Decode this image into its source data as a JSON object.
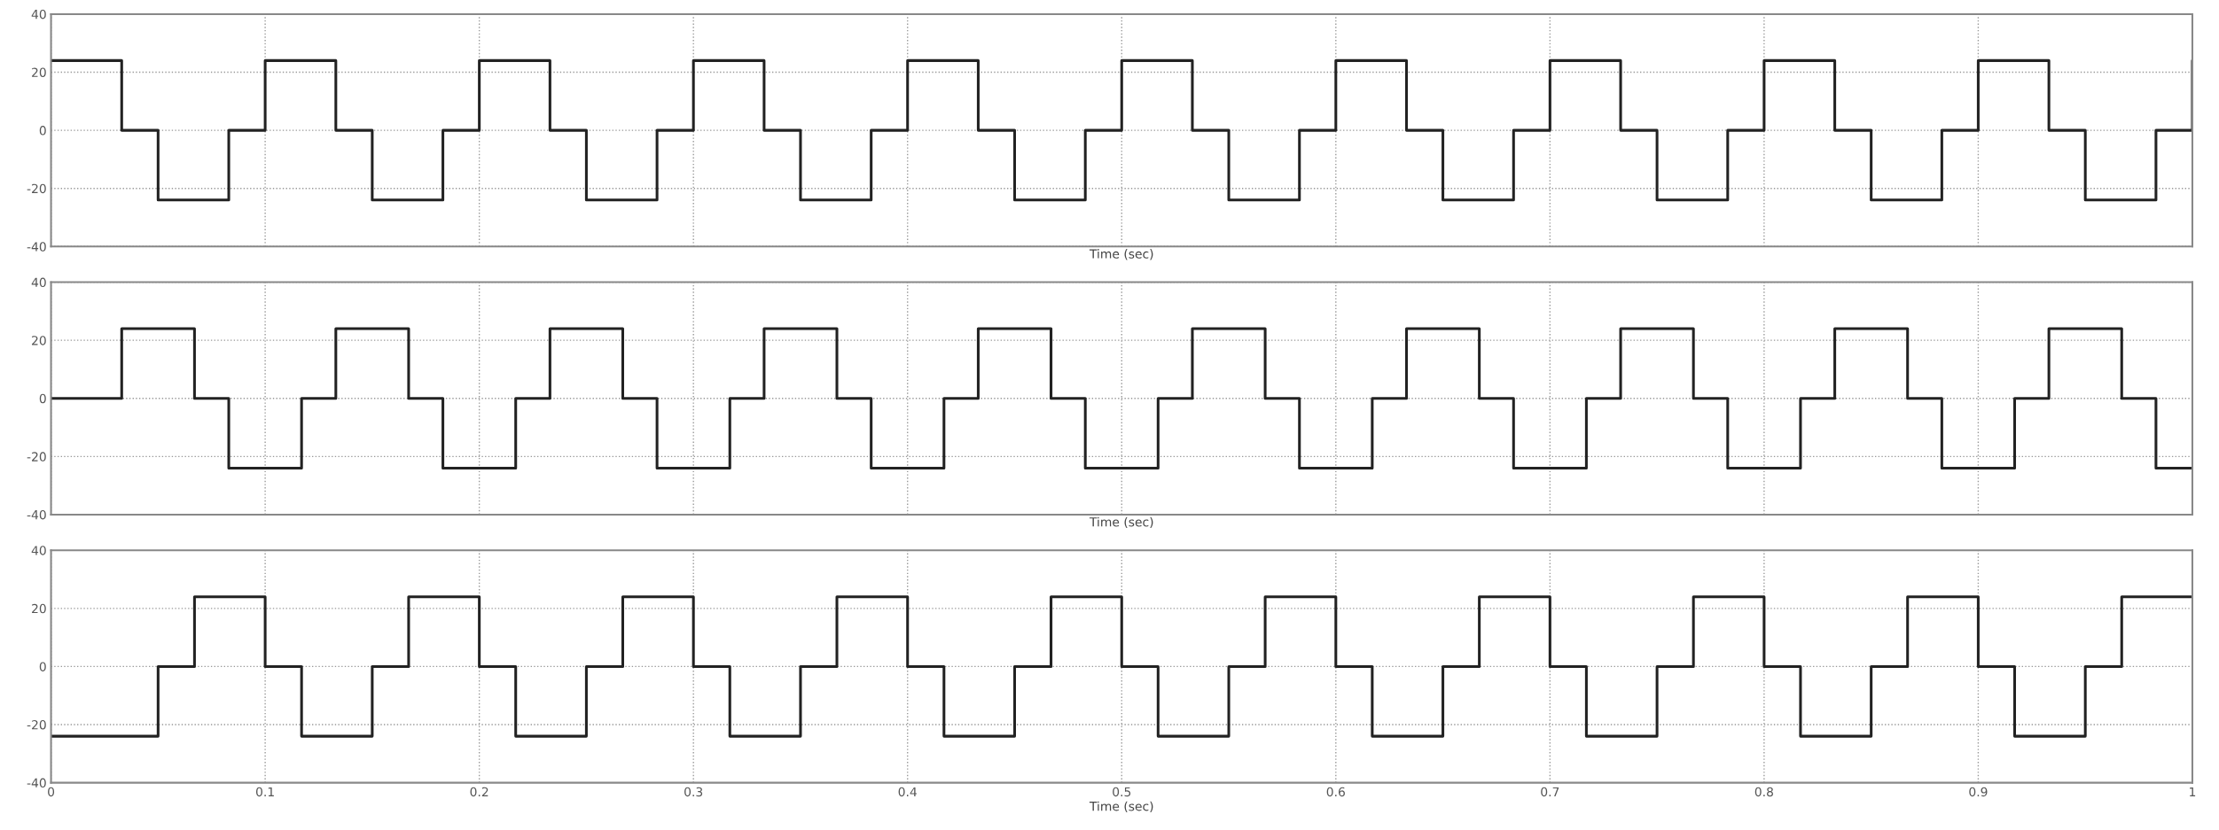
{
  "chart_data": [
    {
      "type": "step",
      "xlabel": "Time (sec)",
      "xlim": [
        0,
        1
      ],
      "xticks": [
        0,
        0.1,
        0.2,
        0.3,
        0.4,
        0.5,
        0.6,
        0.7,
        0.8,
        0.9,
        1
      ],
      "ylim": [
        -40,
        40
      ],
      "yticks": [
        -40,
        -20,
        0,
        20,
        40
      ],
      "grid": true,
      "tick_labels": "y",
      "line_style": "solid",
      "series": [
        {
          "color": "#222222",
          "x": [
            0,
            0.033,
            0.05,
            0.083,
            0.1,
            0.133,
            0.15,
            0.183,
            0.2,
            0.233,
            0.25,
            0.283,
            0.3,
            0.333,
            0.35,
            0.383,
            0.4,
            0.433,
            0.45,
            0.483,
            0.5,
            0.533,
            0.55,
            0.583,
            0.6,
            0.633,
            0.65,
            0.683,
            0.7,
            0.733,
            0.75,
            0.783,
            0.8,
            0.833,
            0.85,
            0.883,
            0.9,
            0.933,
            0.95,
            0.983,
            1.0
          ],
          "values": [
            24,
            0,
            -24,
            0,
            24,
            0,
            -24,
            0,
            24,
            0,
            -24,
            0,
            24,
            0,
            -24,
            0,
            24,
            0,
            -24,
            0,
            24,
            0,
            -24,
            0,
            24,
            0,
            -24,
            0,
            24,
            0,
            -24,
            0,
            24,
            0,
            -24,
            0,
            24,
            0,
            -24,
            0,
            24
          ]
        }
      ]
    },
    {
      "type": "step",
      "xlabel": "Time (sec)",
      "xlim": [
        0,
        1
      ],
      "xticks": [
        0,
        0.1,
        0.2,
        0.3,
        0.4,
        0.5,
        0.6,
        0.7,
        0.8,
        0.9,
        1
      ],
      "ylim": [
        -40,
        40
      ],
      "yticks": [
        -40,
        -20,
        0,
        20,
        40
      ],
      "grid": true,
      "tick_labels": "y",
      "line_style": "solid",
      "series": [
        {
          "color": "#222222",
          "x": [
            0,
            0.033,
            0.067,
            0.083,
            0.117,
            0.133,
            0.167,
            0.183,
            0.217,
            0.233,
            0.267,
            0.283,
            0.317,
            0.333,
            0.367,
            0.383,
            0.417,
            0.433,
            0.467,
            0.483,
            0.517,
            0.533,
            0.567,
            0.583,
            0.617,
            0.633,
            0.667,
            0.683,
            0.717,
            0.733,
            0.767,
            0.783,
            0.817,
            0.833,
            0.867,
            0.883,
            0.917,
            0.933,
            0.967,
            0.983,
            1.0
          ],
          "values": [
            0,
            24,
            0,
            -24,
            0,
            24,
            0,
            -24,
            0,
            24,
            0,
            -24,
            0,
            24,
            0,
            -24,
            0,
            24,
            0,
            -24,
            0,
            24,
            0,
            -24,
            0,
            24,
            0,
            -24,
            0,
            24,
            0,
            -24,
            0,
            24,
            0,
            -24,
            0,
            24,
            0,
            -24,
            -24
          ]
        }
      ]
    },
    {
      "type": "step",
      "xlabel": "Time (sec)",
      "xlim": [
        0,
        1
      ],
      "xticks": [
        0,
        0.1,
        0.2,
        0.3,
        0.4,
        0.5,
        0.6,
        0.7,
        0.8,
        0.9,
        1
      ],
      "ylim": [
        -40,
        40
      ],
      "yticks": [
        -40,
        -20,
        0,
        20,
        40
      ],
      "grid": true,
      "line_style": "solid",
      "series": [
        {
          "color": "#222222",
          "x": [
            0,
            0.05,
            0.067,
            0.1,
            0.117,
            0.15,
            0.167,
            0.2,
            0.217,
            0.25,
            0.267,
            0.3,
            0.317,
            0.35,
            0.367,
            0.4,
            0.417,
            0.45,
            0.467,
            0.5,
            0.517,
            0.55,
            0.567,
            0.6,
            0.617,
            0.65,
            0.667,
            0.7,
            0.717,
            0.75,
            0.767,
            0.8,
            0.817,
            0.85,
            0.867,
            0.9,
            0.917,
            0.95,
            0.967,
            1.0
          ],
          "values": [
            -24,
            0,
            24,
            0,
            -24,
            0,
            24,
            0,
            -24,
            0,
            24,
            0,
            -24,
            0,
            24,
            0,
            -24,
            0,
            24,
            0,
            -24,
            0,
            24,
            0,
            -24,
            0,
            24,
            0,
            -24,
            0,
            24,
            0,
            -24,
            0,
            24,
            0,
            -24,
            0,
            24,
            24
          ]
        }
      ]
    }
  ]
}
